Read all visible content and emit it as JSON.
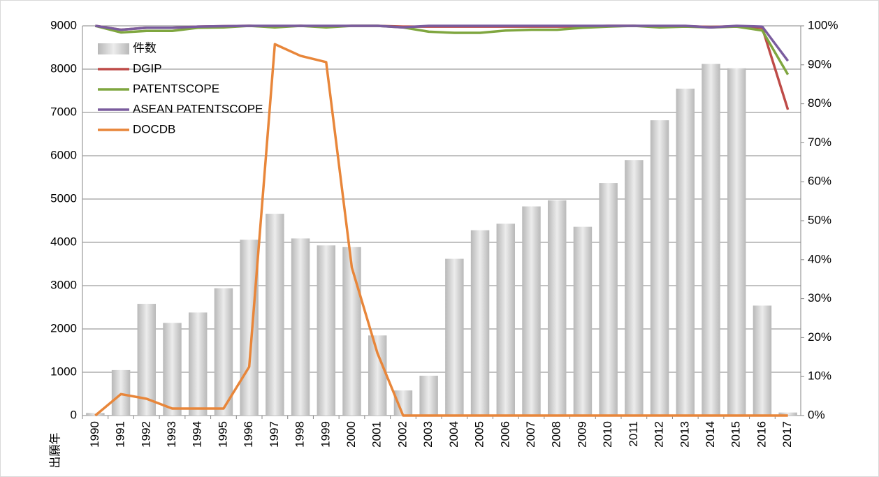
{
  "chart_data": {
    "type": "bar_line",
    "x_label": "出願年",
    "categories": [
      "1990",
      "1991",
      "1992",
      "1993",
      "1994",
      "1995",
      "1996",
      "1997",
      "1998",
      "1999",
      "2000",
      "2001",
      "2002",
      "2003",
      "2004",
      "2005",
      "2006",
      "2007",
      "2008",
      "2009",
      "2010",
      "2011",
      "2012",
      "2013",
      "2014",
      "2015",
      "2016",
      "2017"
    ],
    "series": [
      {
        "name": "件数",
        "kind": "bar",
        "color": "#c8c8c8",
        "values": [
          60,
          1050,
          2580,
          2140,
          2380,
          2940,
          4060,
          4660,
          4090,
          3930,
          3890,
          1850,
          580,
          920,
          3620,
          4280,
          4430,
          4830,
          4970,
          4360,
          5370,
          5900,
          6820,
          7550,
          8120,
          8020,
          2540,
          70
        ]
      },
      {
        "name": "DGIP",
        "kind": "line",
        "axis": "y2",
        "color": "#be4b48",
        "values": [
          100,
          99,
          99.5,
          99.5,
          99.8,
          99.9,
          100,
          99.8,
          100,
          99.8,
          100,
          100,
          99.8,
          99.8,
          99.8,
          99.8,
          99.8,
          99.8,
          99.8,
          99.8,
          100,
          100,
          99.8,
          99.9,
          99.7,
          99.9,
          99.5,
          78.5
        ]
      },
      {
        "name": "PATENTSCOPE",
        "kind": "line",
        "axis": "y2",
        "color": "#7fa63f",
        "values": [
          100,
          98.3,
          98.7,
          98.7,
          99.5,
          99.6,
          100,
          99.6,
          100,
          99.6,
          100,
          100,
          99.6,
          98.5,
          98.2,
          98.2,
          98.8,
          99,
          99,
          99.5,
          99.8,
          100,
          99.6,
          99.8,
          99.6,
          99.8,
          98.8,
          87.5
        ]
      },
      {
        "name": "ASEAN PATENTSCOPE",
        "kind": "line",
        "axis": "y2",
        "color": "#7a5c9e",
        "values": [
          100,
          99,
          99.5,
          99.5,
          99.8,
          99.9,
          100,
          100,
          100,
          100,
          100,
          100,
          99.6,
          100,
          100,
          100,
          100,
          100,
          100,
          100,
          100,
          100,
          100,
          100,
          99.6,
          100,
          99.8,
          91
        ]
      },
      {
        "name": "DOCDB",
        "kind": "line",
        "axis": "y2",
        "color": "#e8863a",
        "values": [
          0,
          5.5,
          4.3,
          1.8,
          1.8,
          1.8,
          12.5,
          95.3,
          92.3,
          90.7,
          38,
          16,
          0,
          0,
          0,
          0,
          0,
          0,
          0,
          0,
          0,
          0,
          0,
          0,
          0,
          0,
          0,
          0
        ]
      }
    ],
    "ylim": [
      0,
      9000
    ],
    "yticks": [
      0,
      1000,
      2000,
      3000,
      4000,
      5000,
      6000,
      7000,
      8000,
      9000
    ],
    "y2lim": [
      0,
      100
    ],
    "y2ticks": [
      {
        "value": 0,
        "label": "0%"
      },
      {
        "value": 10,
        "label": "10%"
      },
      {
        "value": 20,
        "label": "20%"
      },
      {
        "value": 30,
        "label": "30%"
      },
      {
        "value": 40,
        "label": "40%"
      },
      {
        "value": 50,
        "label": "50%"
      },
      {
        "value": 60,
        "label": "60%"
      },
      {
        "value": 70,
        "label": "70%"
      },
      {
        "value": 80,
        "label": "80%"
      },
      {
        "value": 90,
        "label": "90%"
      },
      {
        "value": 100,
        "label": "100%"
      }
    ],
    "grid": true,
    "legend": "upper left"
  }
}
